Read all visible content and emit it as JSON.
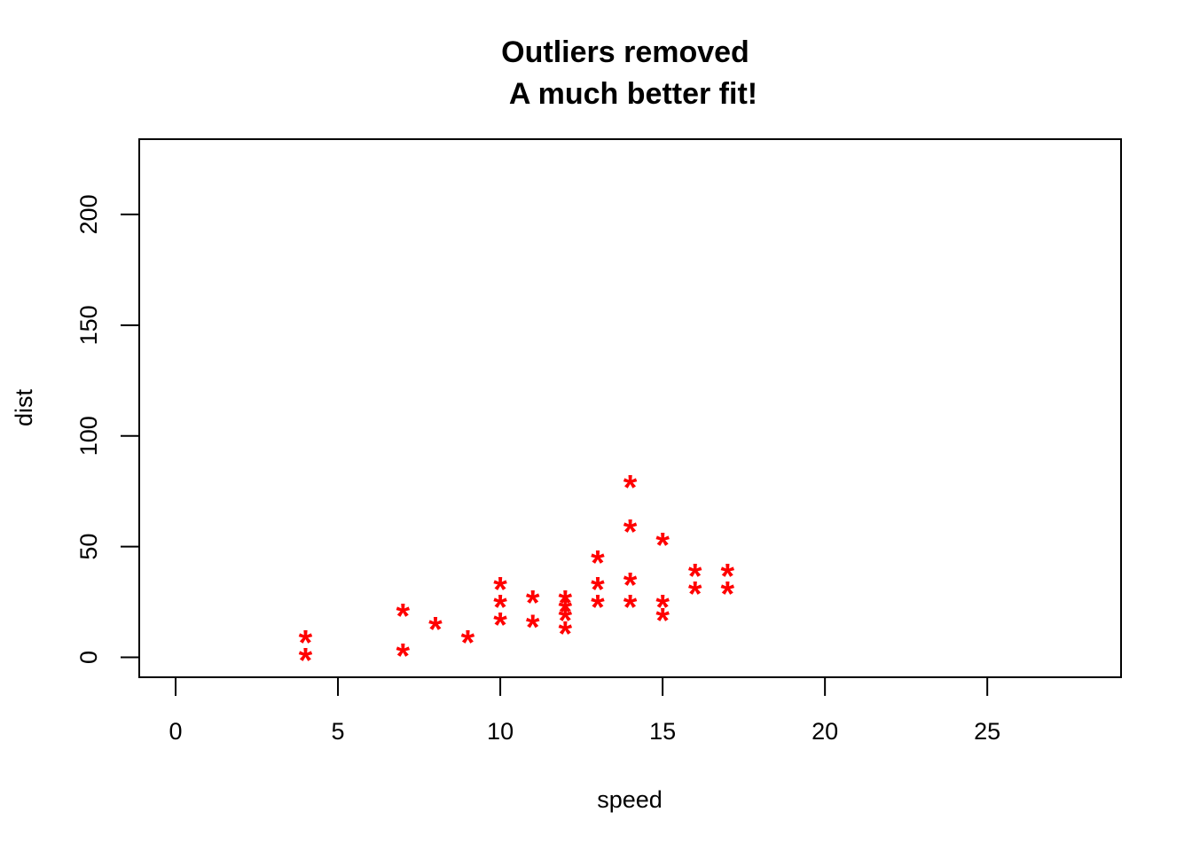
{
  "chart_data": {
    "type": "scatter",
    "title_lines": [
      "Outliers removed",
      "A much better fit!"
    ],
    "xlabel": "speed",
    "ylabel": "dist",
    "xlim": [
      -1.12,
      29.12
    ],
    "ylim": [
      -9,
      234
    ],
    "x_ticks": [
      0,
      5,
      10,
      15,
      20,
      25
    ],
    "y_ticks": [
      0,
      50,
      100,
      150,
      200
    ],
    "grid": false,
    "marker": "*",
    "marker_color": "#ff0000",
    "series": [
      {
        "points": [
          [
            4,
            2
          ],
          [
            4,
            10
          ],
          [
            7,
            4
          ],
          [
            7,
            22
          ],
          [
            8,
            16
          ],
          [
            9,
            10
          ],
          [
            10,
            18
          ],
          [
            10,
            26
          ],
          [
            10,
            34
          ],
          [
            11,
            17
          ],
          [
            11,
            28
          ],
          [
            12,
            14
          ],
          [
            12,
            20
          ],
          [
            12,
            24
          ],
          [
            12,
            28
          ],
          [
            13,
            26
          ],
          [
            13,
            34
          ],
          [
            13,
            46
          ],
          [
            14,
            26
          ],
          [
            14,
            36
          ],
          [
            14,
            60
          ],
          [
            14,
            80
          ],
          [
            15,
            20
          ],
          [
            15,
            26
          ],
          [
            15,
            54
          ],
          [
            16,
            32
          ],
          [
            16,
            40
          ],
          [
            17,
            32
          ],
          [
            17,
            40
          ]
        ]
      }
    ]
  }
}
